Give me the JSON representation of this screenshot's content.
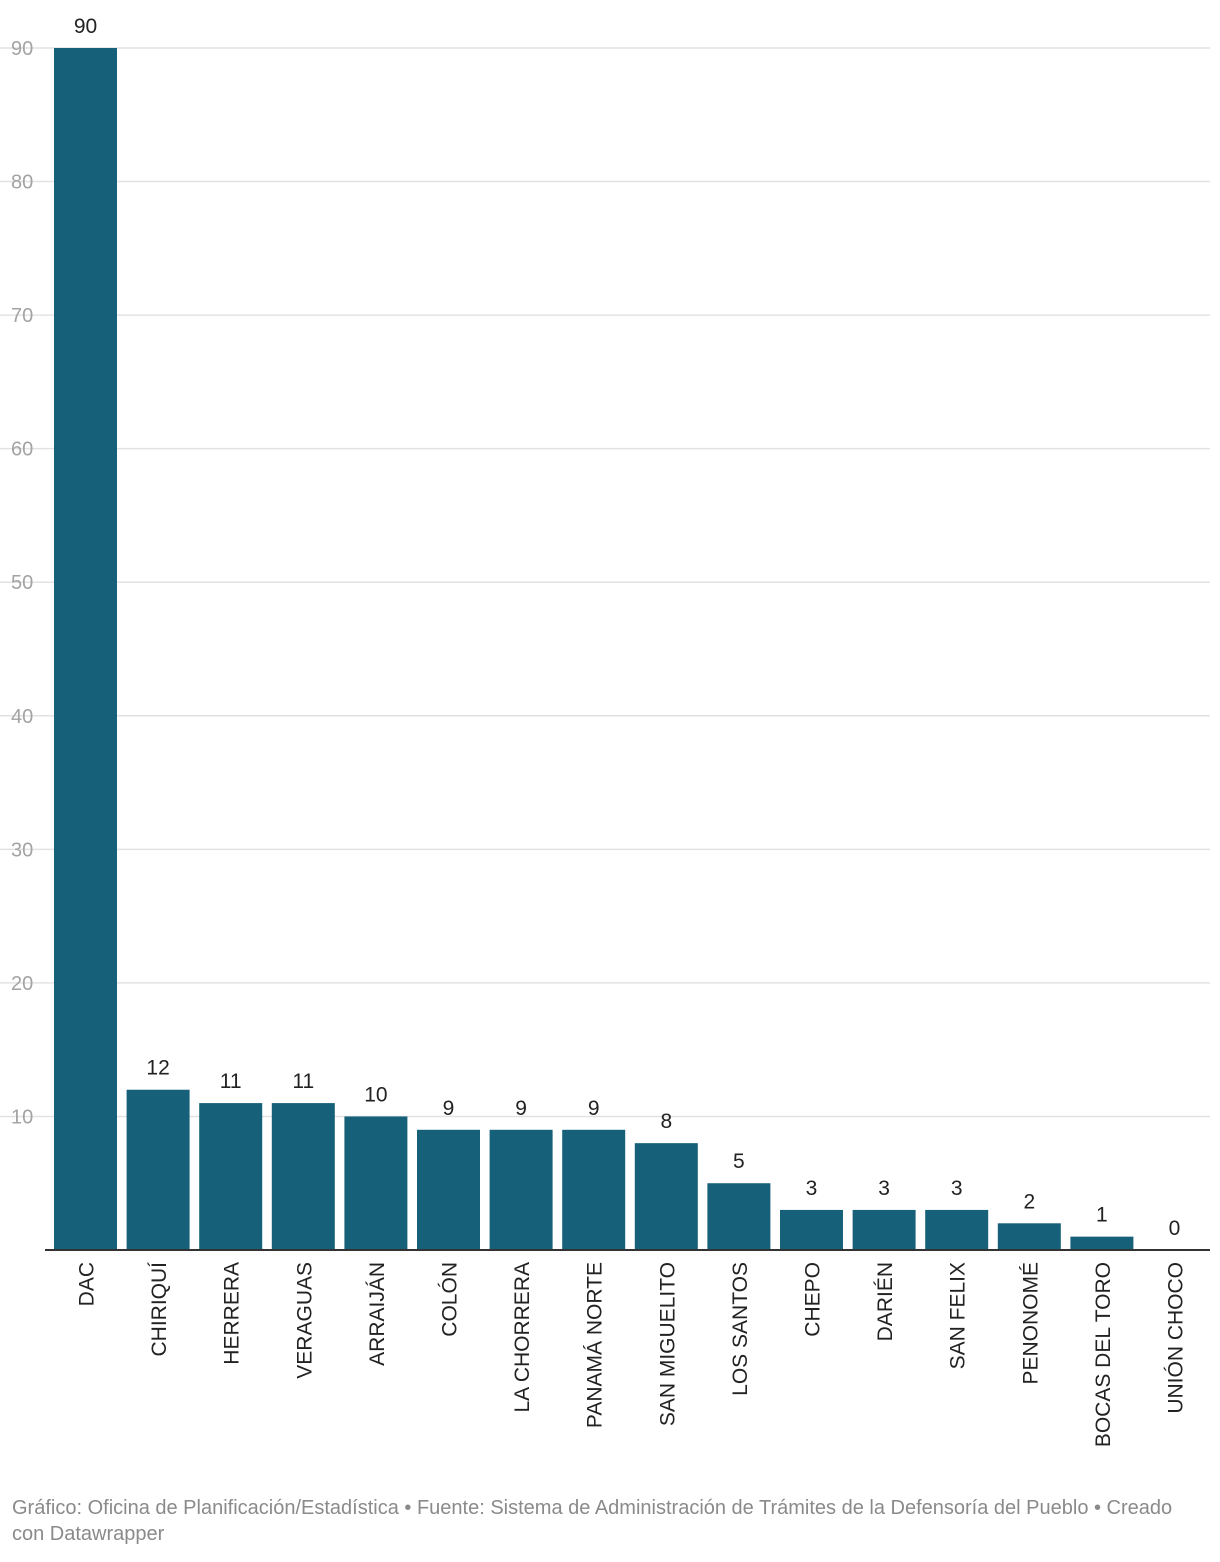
{
  "chart_data": {
    "type": "bar",
    "title": "",
    "xlabel": "",
    "ylabel": "",
    "ylim": [
      0,
      90
    ],
    "yticks": [
      10,
      20,
      30,
      40,
      50,
      60,
      70,
      80,
      90
    ],
    "grid": true,
    "categories": [
      "DAC",
      "CHIRIQUÍ",
      "HERRERA",
      "VERAGUAS",
      "ARRAIJÁN",
      "COLÓN",
      "LA CHORRERA",
      "PANAMÁ NORTE",
      "SAN MIGUELITO",
      "LOS SANTOS",
      "CHEPO",
      "DARIÉN",
      "SAN FELIX",
      "PENONOMÉ",
      "BOCAS DEL TORO",
      "UNIÓN CHOCO"
    ],
    "values": [
      90,
      12,
      11,
      11,
      10,
      9,
      9,
      9,
      8,
      5,
      3,
      3,
      3,
      2,
      1,
      0
    ],
    "bar_color": "#17607a"
  },
  "footer": {
    "text": "Gráfico: Oficina de Planificación/Estadística • Fuente: Sistema de Administración de Trámites de la Defensoría del Pueblo • Creado con Datawrapper"
  }
}
